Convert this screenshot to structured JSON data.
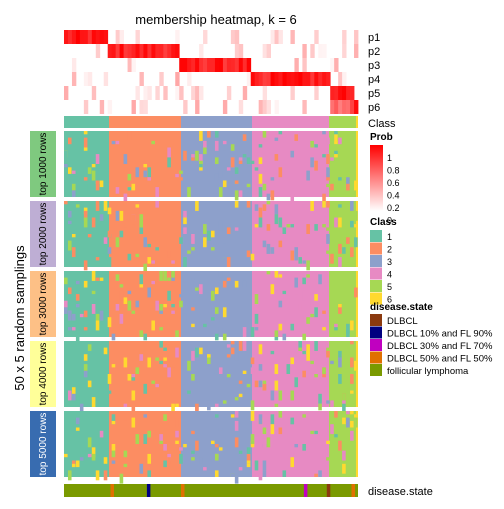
{
  "chart_data": {
    "type": "heatmap",
    "title": "membership heatmap, k = 6",
    "y_title": "50 x 5 random samplings",
    "membership_rows": [
      "p1",
      "p2",
      "p3",
      "p4",
      "p5",
      "p6"
    ],
    "class_track_label": "Class",
    "bottom_track_label": "disease.state",
    "sample_groups": [
      {
        "class": "1",
        "fraction": 0.154
      },
      {
        "class": "2",
        "fraction": 0.245
      },
      {
        "class": "3",
        "fraction": 0.242
      },
      {
        "class": "4",
        "fraction": 0.261
      },
      {
        "class": "5",
        "fraction": 0.091
      },
      {
        "class": "6",
        "fraction": 0.007
      }
    ],
    "row_blocks": [
      {
        "label": "top 1000 rows",
        "color": "#7fc97f"
      },
      {
        "label": "top 2000 rows",
        "color": "#beaed4"
      },
      {
        "label": "top 3000 rows",
        "color": "#fdc086"
      },
      {
        "label": "top 4000 rows",
        "color": "#ffff99"
      },
      {
        "label": "top 5000 rows",
        "color": "#386cb0"
      }
    ],
    "prob_legend": {
      "title": "Prob",
      "ticks": [
        "1",
        "0.8",
        "0.6",
        "0.4",
        "0.2",
        "0"
      ],
      "low_color": "#ffffff",
      "high_color": "#ff0000"
    },
    "class_legend": {
      "title": "Class",
      "items": [
        {
          "label": "1",
          "color": "#66c2a5"
        },
        {
          "label": "2",
          "color": "#fc8d62"
        },
        {
          "label": "3",
          "color": "#8da0cb"
        },
        {
          "label": "4",
          "color": "#e78ac3"
        },
        {
          "label": "5",
          "color": "#a6d854"
        },
        {
          "label": "6",
          "color": "#ffd92f"
        }
      ]
    },
    "disease_legend": {
      "title": "disease.state",
      "items": [
        {
          "label": "DLBCL",
          "color": "#8b3a0f"
        },
        {
          "label": "DLBCL 10% and FL 90%",
          "color": "#000080"
        },
        {
          "label": "DLBCL 30% and FL 70%",
          "color": "#c000c0"
        },
        {
          "label": "DLBCL 50% and FL 50%",
          "color": "#e07000"
        },
        {
          "label": "follicular lymphoma",
          "color": "#7a9a00"
        }
      ]
    }
  }
}
